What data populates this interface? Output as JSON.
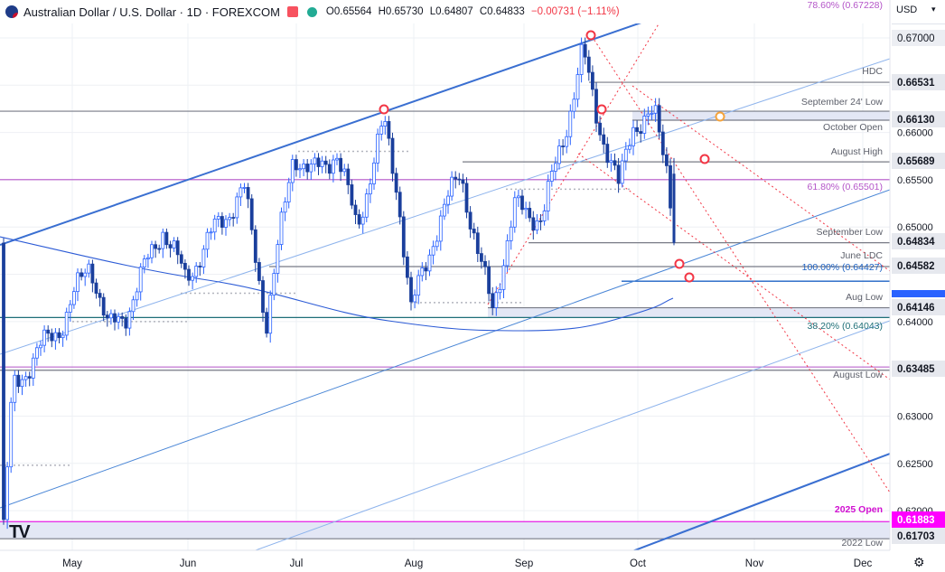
{
  "header": {
    "symbol": "Australian Dollar / U.S. Dollar · 1D · FOREXCOM",
    "open": "O0.65564",
    "high": "H0.65730",
    "low": "L0.64807",
    "close": "C0.64833",
    "change": "−0.00731 (−1.11%)"
  },
  "axis": {
    "currency": "USD",
    "currency_icon": "chevron-down-icon",
    "settings_icon": "gear-icon",
    "logo": "TV"
  },
  "colors": {
    "up": "#1e40af",
    "down": "#1e40af",
    "trend": "#3a6fd1",
    "lightTrend": "#8db3ec",
    "fib": "#b455c8",
    "level": "#787b86",
    "ma": "#2c5bd6",
    "red": "#f23645",
    "magenta": "#e633e6",
    "orange": "#f5a33b",
    "zone": "#e3e7f5"
  },
  "chart_data": {
    "type": "candlestick",
    "instrument": "AUD/USD",
    "timeframe": "1D",
    "ylim": [
      0.6165,
      0.6738
    ],
    "x_ticks": [
      "May",
      "Jun",
      "Jul",
      "Aug",
      "Sep",
      "Oct",
      "Nov",
      "Dec"
    ],
    "y_ticks": [
      "0.62000",
      "0.62500",
      "0.63000",
      "0.64000",
      "0.65000",
      "0.65500",
      "0.66000"
    ],
    "price_labels": [
      {
        "value": 0.67,
        "text": "0.67000",
        "style": "plain"
      },
      {
        "value": 0.66531,
        "text": "0.66531",
        "style": "level"
      },
      {
        "value": 0.6613,
        "text": "0.66130",
        "style": "level"
      },
      {
        "value": 0.65689,
        "text": "0.65689",
        "style": "level"
      },
      {
        "value": 0.64834,
        "text": "0.64834",
        "style": "level"
      },
      {
        "value": 0.64582,
        "text": "0.64582",
        "style": "level"
      },
      {
        "value": 0.64146,
        "text": "0.64146",
        "style": "level"
      },
      {
        "value": 0.63485,
        "text": "0.63485",
        "style": "level"
      },
      {
        "value": 0.61883,
        "text": "0.61883",
        "style": "magenta"
      },
      {
        "value": 0.61703,
        "text": "0.61703",
        "style": "level"
      }
    ],
    "annotations": [
      {
        "text": "78.60% (0.67228)",
        "value": 0.67228,
        "kind": "fib"
      },
      {
        "text": "HDC",
        "value": 0.66531,
        "kind": "level"
      },
      {
        "text": "September 24' Low",
        "value": 0.66225,
        "kind": "level"
      },
      {
        "text": "October Open",
        "value": 0.6613,
        "kind": "level"
      },
      {
        "text": "August High",
        "value": 0.65689,
        "kind": "level"
      },
      {
        "text": "61.80% (0.65501)",
        "value": 0.65501,
        "kind": "fib"
      },
      {
        "text": "September Low",
        "value": 0.64834,
        "kind": "level"
      },
      {
        "text": "June LDC",
        "value": 0.64582,
        "kind": "level"
      },
      {
        "text": "100.00% (0.64427)",
        "value": 0.64427,
        "kind": "blue"
      },
      {
        "text": "Aug Low",
        "value": 0.64146,
        "kind": "level"
      },
      {
        "text": "38.20% (0.64043)",
        "value": 0.64043,
        "kind": "teal"
      },
      {
        "text": "August Low",
        "value": 0.63485,
        "kind": "level"
      },
      {
        "text": "2025 Open",
        "value": 0.61883,
        "kind": "magenta"
      },
      {
        "text": "2022 Low",
        "value": 0.61703,
        "kind": "level"
      }
    ],
    "key_prices": {
      "current_close": 0.64834,
      "swing_high": 0.67,
      "swing_low": 0.64146
    }
  }
}
